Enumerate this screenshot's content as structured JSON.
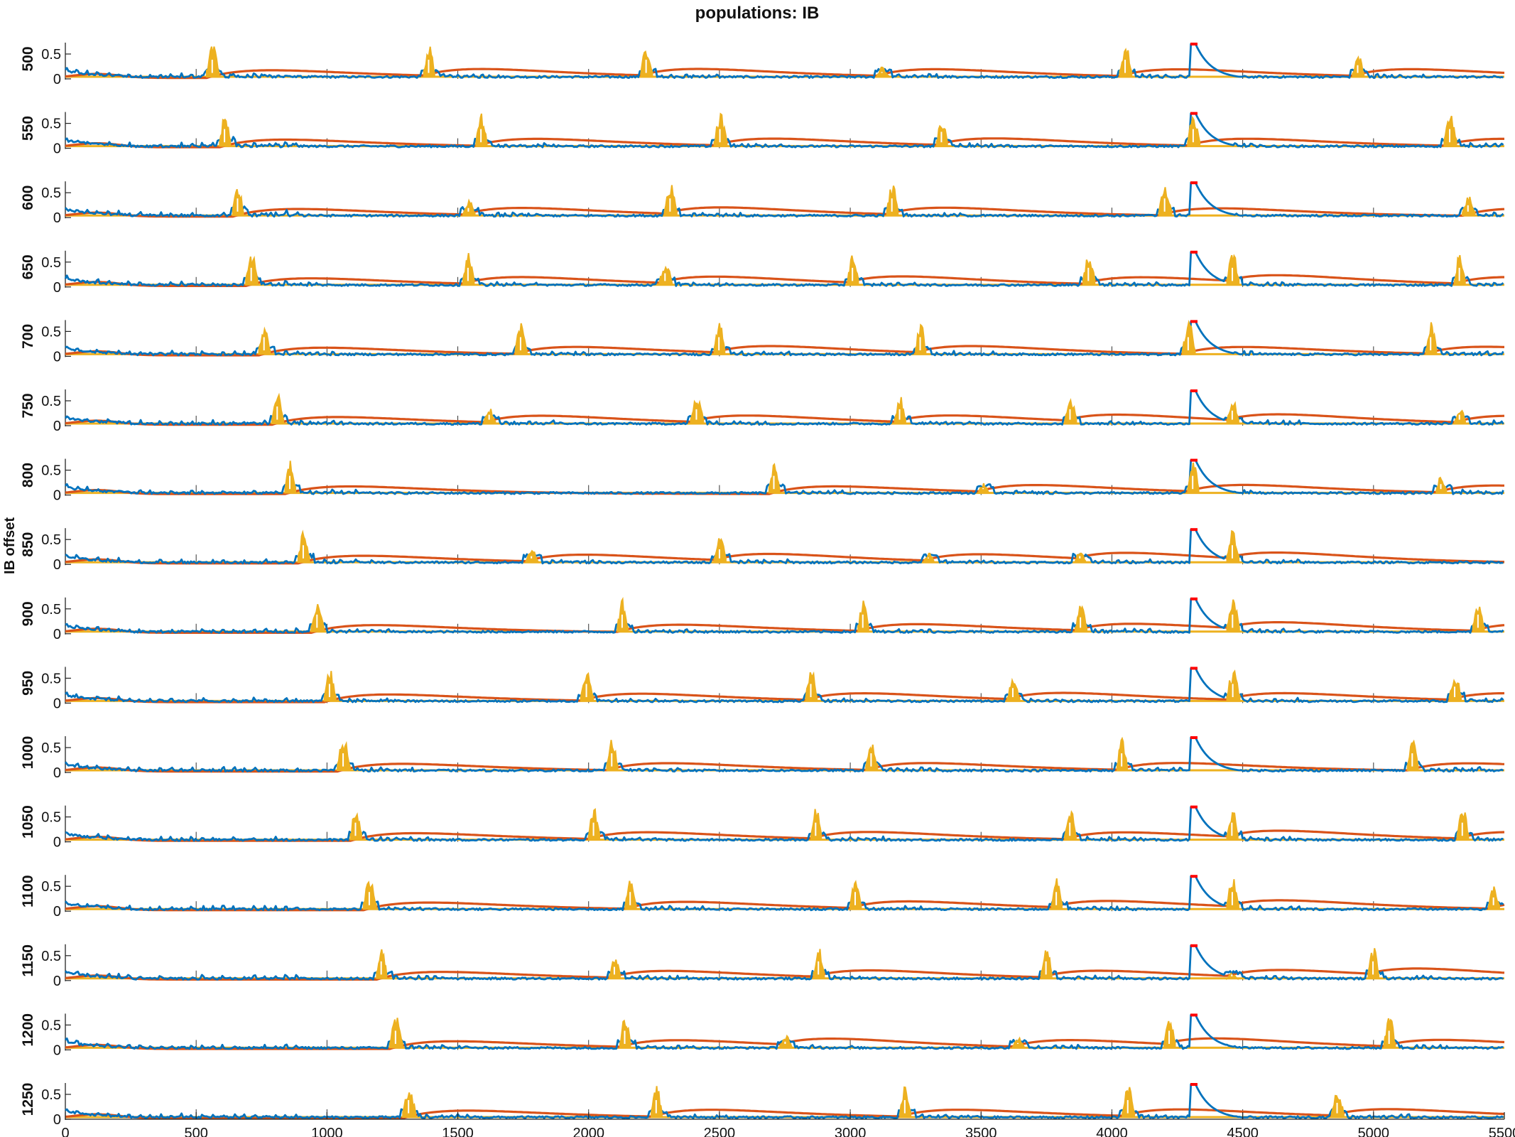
{
  "chart_data": {
    "type": "line",
    "title": "populations: IB",
    "ylabel": "IB offset",
    "xlabel": "",
    "xlim": [
      0,
      5500
    ],
    "x_ticks": [
      0,
      500,
      1000,
      1500,
      2000,
      2500,
      3000,
      3500,
      4000,
      4500,
      5000,
      5500
    ],
    "y_ticks_per_panel": [
      "0",
      "0.5"
    ],
    "ylim_per_panel": [
      0,
      0.7
    ],
    "legend": "none",
    "grid": false,
    "colors": {
      "blue": "#0072BD",
      "orange": "#D95319",
      "yellow": "#EDB120",
      "red": "#FF0000"
    },
    "panels": [
      {
        "offset": "500",
        "bursts": [
          540,
          1370,
          2200,
          3100,
          4030,
          4920
        ],
        "burst_heights": [
          0.7,
          0.7,
          0.7,
          0.25,
          0.7,
          0.5
        ]
      },
      {
        "offset": "550",
        "bursts": [
          590,
          1570,
          2480,
          3330,
          4290,
          5270
        ],
        "burst_heights": [
          0.7,
          0.7,
          0.7,
          0.6,
          0.7,
          0.7
        ]
      },
      {
        "offset": "600",
        "bursts": [
          640,
          1520,
          2290,
          3140,
          4180,
          5340
        ],
        "burst_heights": [
          0.7,
          0.35,
          0.7,
          0.7,
          0.7,
          0.45
        ]
      },
      {
        "offset": "650",
        "bursts": [
          690,
          1520,
          2270,
          2990,
          3890,
          4440,
          5310
        ],
        "burst_heights": [
          0.7,
          0.7,
          0.5,
          0.7,
          0.7,
          0.7,
          0.7
        ]
      },
      {
        "offset": "700",
        "bursts": [
          740,
          1720,
          2480,
          3250,
          4270,
          5200
        ],
        "burst_heights": [
          0.7,
          0.7,
          0.7,
          0.7,
          0.7,
          0.7
        ]
      },
      {
        "offset": "750",
        "bursts": [
          790,
          1600,
          2390,
          3170,
          3820,
          4440,
          5310
        ],
        "burst_heights": [
          0.7,
          0.4,
          0.6,
          0.6,
          0.6,
          0.55,
          0.4
        ]
      },
      {
        "offset": "800",
        "bursts": [
          840,
          2690,
          3490,
          4290,
          5240
        ],
        "burst_heights": [
          0.7,
          0.7,
          0.25,
          0.7,
          0.4
        ]
      },
      {
        "offset": "850",
        "bursts": [
          890,
          1760,
          2480,
          3280,
          3860,
          4440
        ],
        "burst_heights": [
          0.7,
          0.3,
          0.55,
          0.25,
          0.3,
          0.7
        ]
      },
      {
        "offset": "900",
        "bursts": [
          940,
          2110,
          3030,
          3860,
          4440,
          5380
        ],
        "burst_heights": [
          0.7,
          0.7,
          0.7,
          0.6,
          0.7,
          0.7
        ]
      },
      {
        "offset": "950",
        "bursts": [
          990,
          1970,
          2830,
          3600,
          4440,
          5290
        ],
        "burst_heights": [
          0.7,
          0.7,
          0.7,
          0.55,
          0.7,
          0.6
        ]
      },
      {
        "offset": "1000",
        "bursts": [
          1040,
          2070,
          3060,
          4020,
          5130
        ],
        "burst_heights": [
          0.7,
          0.7,
          0.7,
          0.7,
          0.7
        ]
      },
      {
        "offset": "1050",
        "bursts": [
          1090,
          2000,
          2850,
          3820,
          4440,
          5320
        ],
        "burst_heights": [
          0.7,
          0.7,
          0.7,
          0.7,
          0.7,
          0.7
        ]
      },
      {
        "offset": "1100",
        "bursts": [
          1140,
          2140,
          3000,
          3770,
          4440,
          5440
        ],
        "burst_heights": [
          0.7,
          0.7,
          0.7,
          0.7,
          0.7,
          0.5
        ]
      },
      {
        "offset": "1150",
        "bursts": [
          1190,
          2080,
          2860,
          3730,
          4440,
          4980
        ],
        "burst_heights": [
          0.7,
          0.5,
          0.7,
          0.7,
          0.15,
          0.7
        ]
      },
      {
        "offset": "1200",
        "bursts": [
          1240,
          2120,
          2730,
          3620,
          4200,
          5040
        ],
        "burst_heights": [
          0.7,
          0.7,
          0.3,
          0.25,
          0.7,
          0.7
        ]
      },
      {
        "offset": "1250",
        "bursts": [
          1290,
          2240,
          3190,
          4040,
          4840
        ],
        "burst_heights": [
          0.7,
          0.7,
          0.7,
          0.7,
          0.6
        ]
      }
    ],
    "stimulus": {
      "x_start": 4300,
      "peak": 0.7,
      "series_color": "blue"
    }
  }
}
